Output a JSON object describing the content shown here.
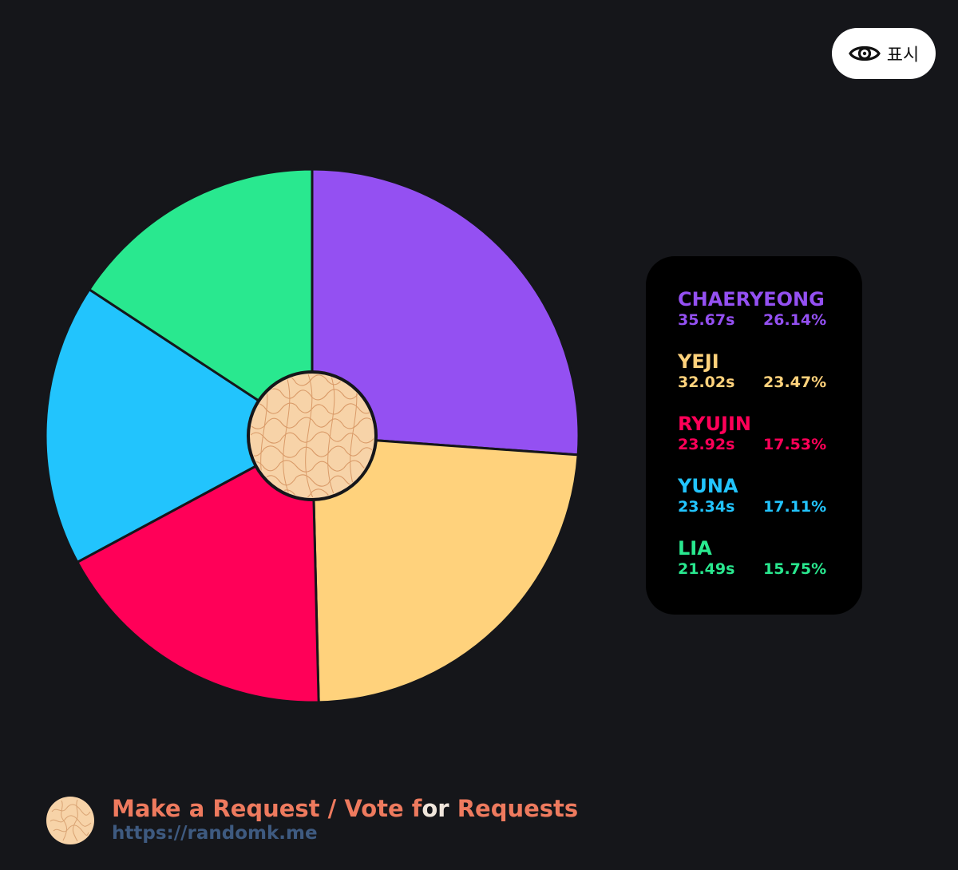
{
  "show_button": {
    "label": "표시",
    "icon": "eye-icon"
  },
  "chart_data": {
    "type": "pie",
    "style": "donut-with-center-logo",
    "slices": [
      {
        "name": "CHAERYEONG",
        "seconds": "35.67s",
        "percent": "26.14%",
        "value": 26.14,
        "color": "#9450f2"
      },
      {
        "name": "YEJI",
        "seconds": "32.02s",
        "percent": "23.47%",
        "value": 23.47,
        "color": "#ffd27c"
      },
      {
        "name": "RYUJIN",
        "seconds": "23.92s",
        "percent": "17.53%",
        "value": 17.53,
        "color": "#ff0058"
      },
      {
        "name": "YUNA",
        "seconds": "23.34s",
        "percent": "17.11%",
        "value": 17.11,
        "color": "#22c4fd"
      },
      {
        "name": "LIA",
        "seconds": "21.49s",
        "percent": "15.75%",
        "value": 15.75,
        "color": "#29e88f"
      }
    ],
    "legend_position": "right"
  },
  "footer": {
    "title_part1": "Make a Request / Vote f",
    "title_for": "or",
    "title_part2": " Requests",
    "url": "https://randomk.me"
  }
}
